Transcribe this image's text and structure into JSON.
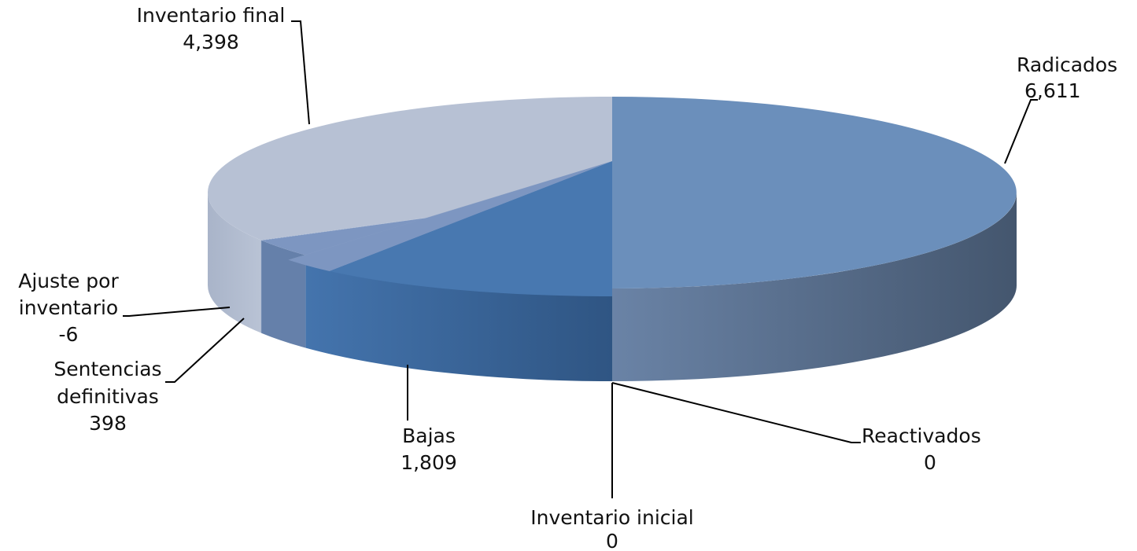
{
  "chart_data": {
    "type": "pie",
    "title": "",
    "slices": [
      {
        "label": "Radicados",
        "value": 6611,
        "value_text": "6,611",
        "color": "#6b8fbb",
        "side_color": "#4f6582"
      },
      {
        "label": "Reactivados",
        "value": 0,
        "value_text": "0",
        "color": "#6b8fbb",
        "side_color": "#4f6582"
      },
      {
        "label": "Inventario inicial",
        "value": 0,
        "value_text": "0",
        "color": "#4878b0",
        "side_color": "#355a86"
      },
      {
        "label": "Bajas",
        "value": 1809,
        "value_text": "1,809",
        "color": "#4878b0",
        "side_color": "#355a86"
      },
      {
        "label": "Sentencias definitivas",
        "value": 398,
        "value_text": "398",
        "color": "#7d96c1",
        "side_color": "#6580aa"
      },
      {
        "label": "Ajuste por inventario",
        "value": -6,
        "value_text": "-6",
        "color": "#8aa0c5",
        "side_color": "#7890b8"
      },
      {
        "label": "Inventario final",
        "value": 4398,
        "value_text": "4,398",
        "color": "#b7c1d4",
        "side_color": "#a4b1c9"
      }
    ],
    "style": "3d-pie",
    "legend": "none"
  }
}
